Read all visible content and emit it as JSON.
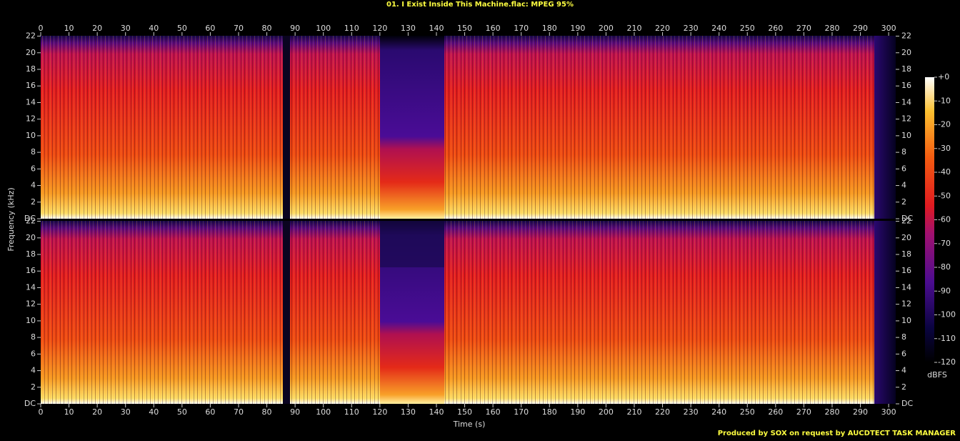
{
  "chart_data": {
    "type": "spectrogram",
    "title": "01. I Exist Inside This Machine.flac: MPEG 95%",
    "x_label": "Time (s)",
    "y_label": "Frequency (kHz)",
    "xlim": [
      0,
      302.5
    ],
    "xticks": [
      0,
      10,
      20,
      30,
      40,
      50,
      60,
      70,
      80,
      90,
      100,
      110,
      120,
      130,
      140,
      150,
      160,
      170,
      180,
      190,
      200,
      210,
      220,
      230,
      240,
      250,
      260,
      270,
      280,
      290,
      300
    ],
    "ylim": [
      0,
      22.05
    ],
    "yticks": [
      {
        "value": 0,
        "label": "DC"
      },
      2,
      4,
      6,
      8,
      10,
      12,
      14,
      16,
      18,
      20,
      22
    ],
    "colorbar": {
      "label": "dBFS",
      "lim": [
        -120,
        0
      ],
      "ticks": [
        {
          "value": 0,
          "label": "+0"
        },
        -10,
        -20,
        -30,
        -40,
        -50,
        -60,
        -70,
        -80,
        -90,
        -100,
        -110,
        -120
      ]
    },
    "footer": "Produced by SOX on request by AUCDTECT TASK MANAGER"
  }
}
